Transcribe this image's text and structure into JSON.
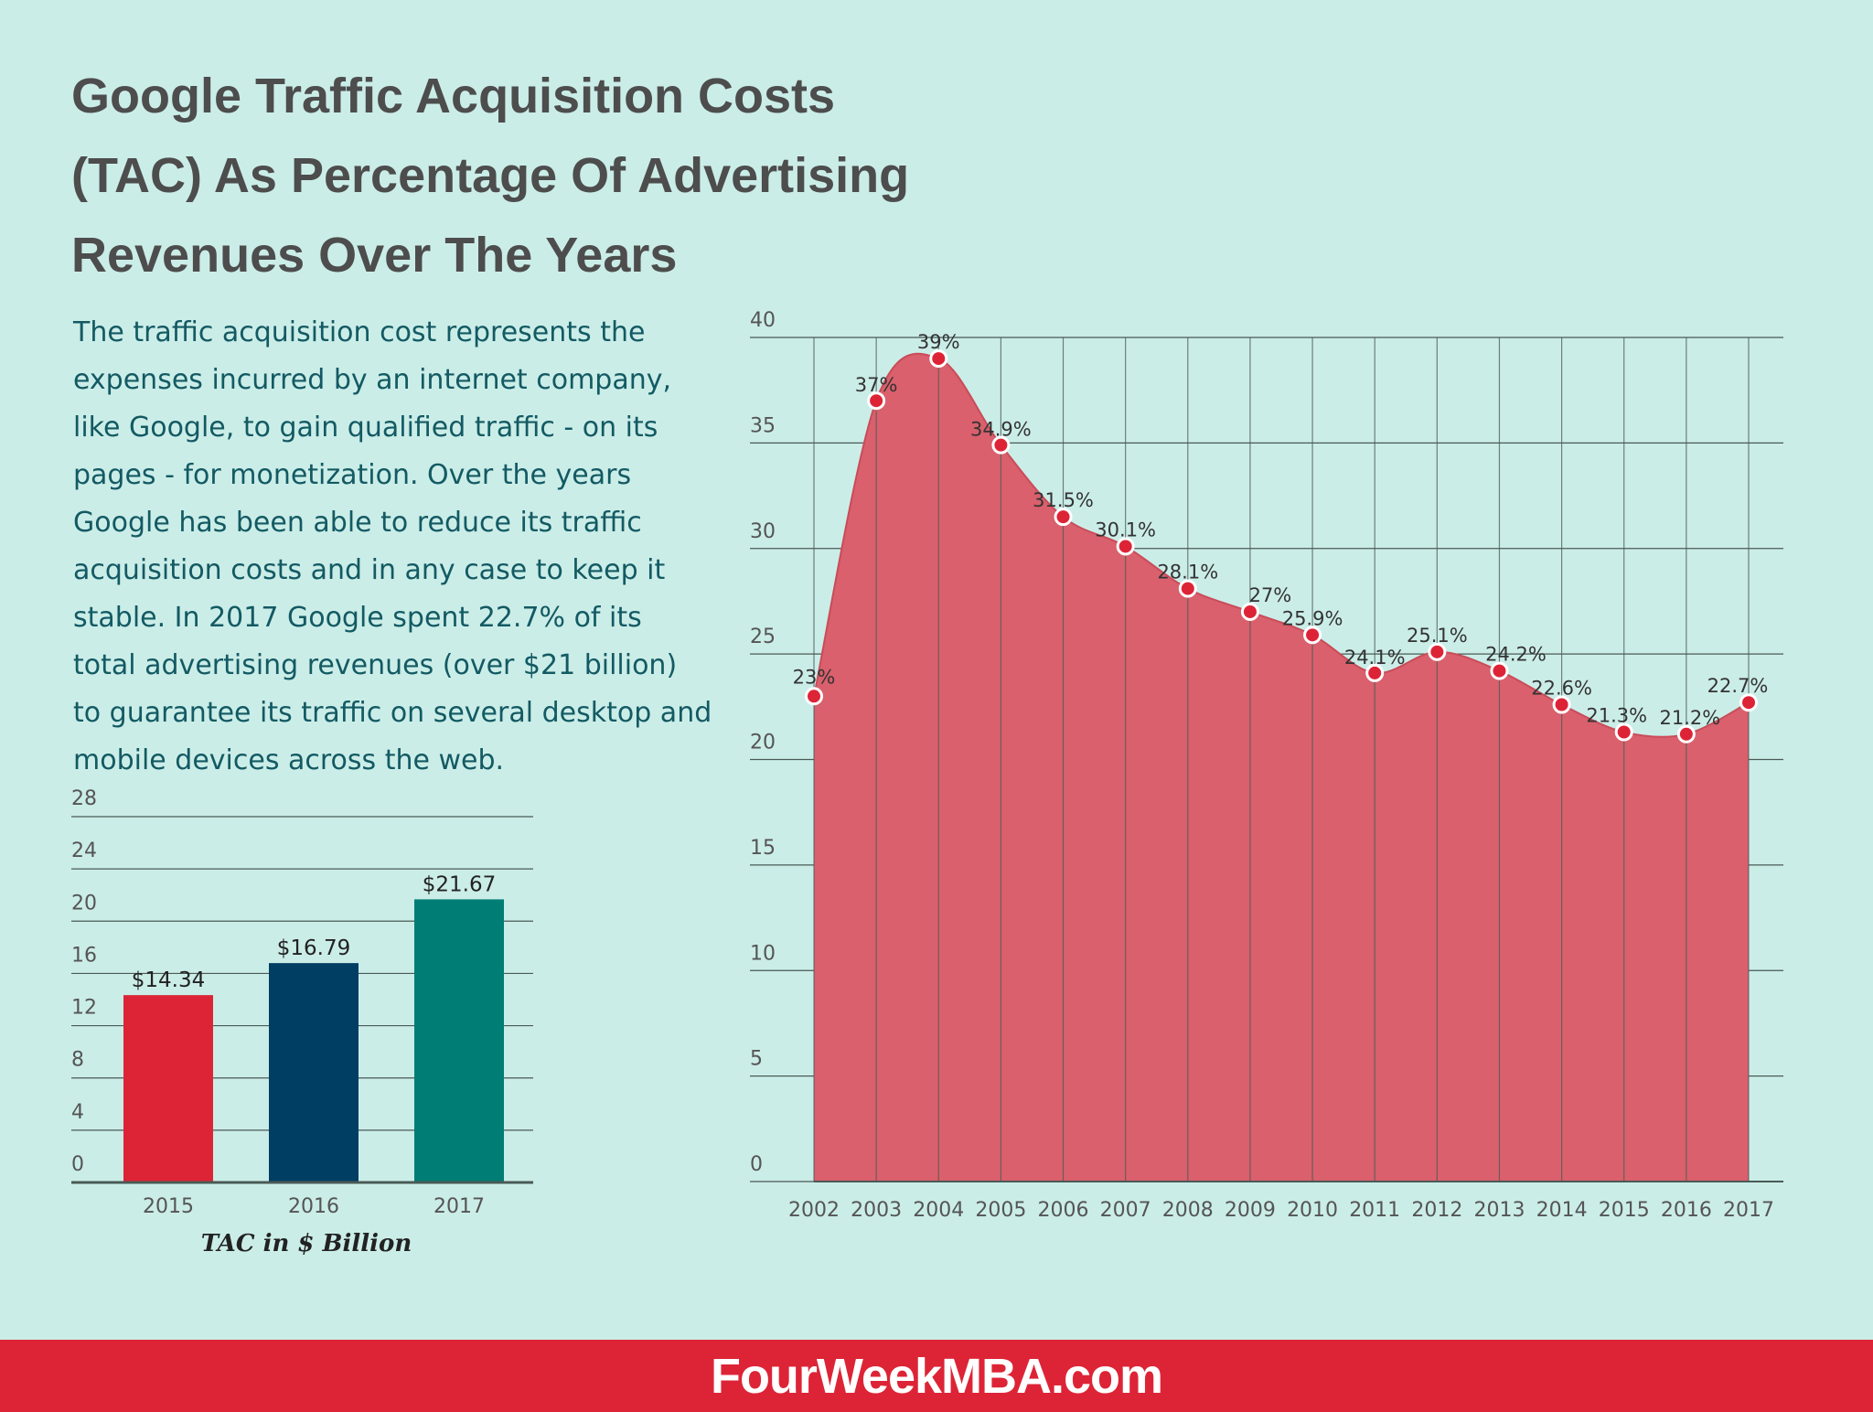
{
  "title_lines": [
    "Google Traffic Acquisition Costs",
    "(TAC) As Percentage Of Advertising",
    "Revenues Over The Years"
  ],
  "description_lines": [
    "The traffic acquisition cost represents the",
    "expenses incurred by an internet company,",
    "like Google, to gain qualified traffic - on its",
    "pages - for monetization. Over the years",
    "Google has been able to reduce its traffic",
    "acquisition costs and in any case to keep it",
    "stable. In 2017 Google spent 22.7% of its",
    "total advertising revenues (over $21 billion)",
    "to guarantee its traffic on several desktop and",
    "mobile devices across the web."
  ],
  "footer": {
    "brand": "FourWeekMBA.com"
  },
  "colors": {
    "background": "#cbede8",
    "area_fill": "#d9606c",
    "point": "#dd2436",
    "bar_2015": "#dd2436",
    "bar_2016": "#013e63",
    "bar_2017": "#007d74",
    "footer": "#dd2436"
  },
  "chart_data": [
    {
      "type": "area",
      "categories": [
        "2002",
        "2003",
        "2004",
        "2005",
        "2006",
        "2007",
        "2008",
        "2009",
        "2010",
        "2011",
        "2012",
        "2013",
        "2014",
        "2015",
        "2016",
        "2017"
      ],
      "values": [
        23,
        37,
        39,
        34.9,
        31.5,
        30.1,
        28.1,
        27,
        25.9,
        24.1,
        25.1,
        24.2,
        22.6,
        21.3,
        21.2,
        22.7
      ],
      "labels": [
        "23%",
        "37%",
        "39%",
        "34.9%",
        "31.5%",
        "30.1%",
        "28.1%",
        "27%",
        "25.9%",
        "24.1%",
        "25.1%",
        "24.2%",
        "22.6%",
        "21.3%",
        "21.2%",
        "22.7%"
      ],
      "ylim": [
        0,
        40
      ],
      "yticks": [
        0,
        5,
        10,
        15,
        20,
        25,
        30,
        35,
        40
      ],
      "grid": true,
      "title": "",
      "xlabel": "",
      "ylabel": ""
    },
    {
      "type": "bar",
      "categories": [
        "2015",
        "2016",
        "2017"
      ],
      "values": [
        14.34,
        16.79,
        21.67
      ],
      "labels": [
        "$14.34",
        "$16.79",
        "$21.67"
      ],
      "ylim": [
        0,
        28
      ],
      "yticks": [
        0,
        4,
        8,
        12,
        16,
        20,
        24,
        28
      ],
      "grid": true,
      "xlabel": "TAC in $ Billion",
      "title": "",
      "ylabel": ""
    }
  ]
}
